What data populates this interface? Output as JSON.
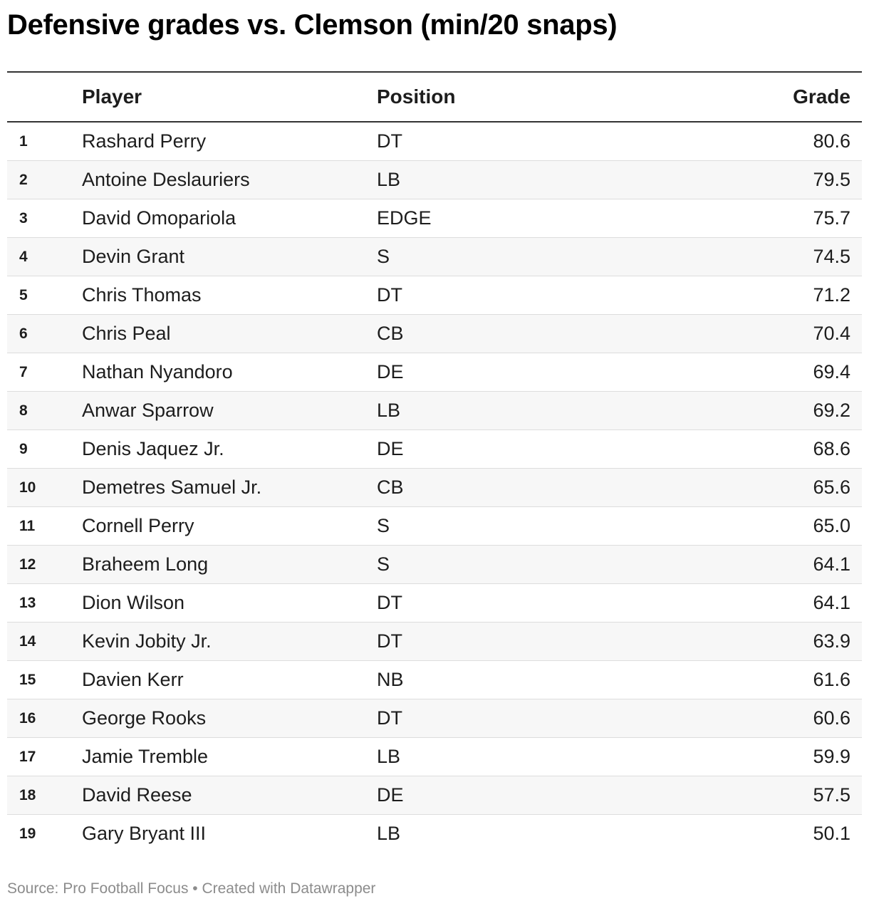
{
  "chart_data": {
    "type": "table",
    "title": "Defensive grades vs. Clemson (min/20 snaps)",
    "columns": [
      "",
      "Player",
      "Position",
      "Grade"
    ],
    "rows": [
      {
        "rank": "1",
        "player": "Rashard Perry",
        "position": "DT",
        "grade": "80.6"
      },
      {
        "rank": "2",
        "player": "Antoine Deslauriers",
        "position": "LB",
        "grade": "79.5"
      },
      {
        "rank": "3",
        "player": "David Omopariola",
        "position": "EDGE",
        "grade": "75.7"
      },
      {
        "rank": "4",
        "player": "Devin Grant",
        "position": "S",
        "grade": "74.5"
      },
      {
        "rank": "5",
        "player": "Chris Thomas",
        "position": "DT",
        "grade": "71.2"
      },
      {
        "rank": "6",
        "player": "Chris Peal",
        "position": "CB",
        "grade": "70.4"
      },
      {
        "rank": "7",
        "player": "Nathan Nyandoro",
        "position": "DE",
        "grade": "69.4"
      },
      {
        "rank": "8",
        "player": "Anwar Sparrow",
        "position": "LB",
        "grade": "69.2"
      },
      {
        "rank": "9",
        "player": "Denis Jaquez Jr.",
        "position": "DE",
        "grade": "68.6"
      },
      {
        "rank": "10",
        "player": "Demetres Samuel Jr.",
        "position": "CB",
        "grade": "65.6"
      },
      {
        "rank": "11",
        "player": "Cornell Perry",
        "position": "S",
        "grade": "65.0"
      },
      {
        "rank": "12",
        "player": "Braheem Long",
        "position": "S",
        "grade": "64.1"
      },
      {
        "rank": "13",
        "player": "Dion Wilson",
        "position": "DT",
        "grade": "64.1"
      },
      {
        "rank": "14",
        "player": "Kevin Jobity Jr.",
        "position": "DT",
        "grade": "63.9"
      },
      {
        "rank": "15",
        "player": "Davien Kerr",
        "position": "NB",
        "grade": "61.6"
      },
      {
        "rank": "16",
        "player": "George Rooks",
        "position": "DT",
        "grade": "60.6"
      },
      {
        "rank": "17",
        "player": "Jamie Tremble",
        "position": "LB",
        "grade": "59.9"
      },
      {
        "rank": "18",
        "player": "David Reese",
        "position": "DE",
        "grade": "57.5"
      },
      {
        "rank": "19",
        "player": "Gary Bryant III",
        "position": "LB",
        "grade": "50.1"
      }
    ],
    "footer": "Source: Pro Football Focus • Created with Datawrapper"
  },
  "colors": {
    "text": "#1d1d1d",
    "row_alt_background": "#f7f7f7",
    "footer_text": "#8c8c8c"
  }
}
